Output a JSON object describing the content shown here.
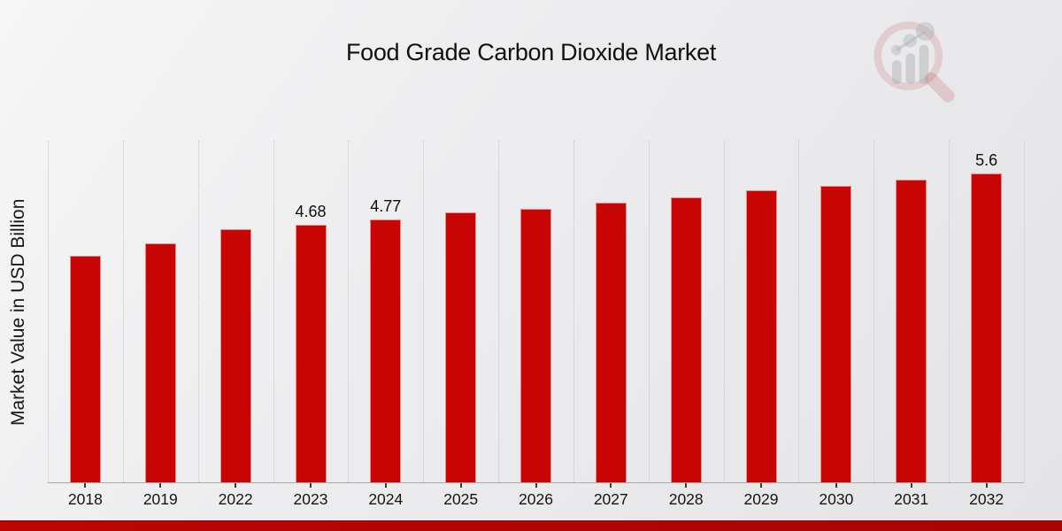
{
  "chart_data": {
    "type": "bar",
    "title": "Food Grade Carbon Dioxide Market",
    "xlabel": "",
    "ylabel": "Market Value in USD Billion",
    "categories": [
      "2018",
      "2019",
      "2022",
      "2023",
      "2024",
      "2025",
      "2026",
      "2027",
      "2028",
      "2029",
      "2030",
      "2031",
      "2032"
    ],
    "values": [
      4.12,
      4.34,
      4.6,
      4.68,
      4.77,
      4.9,
      4.97,
      5.08,
      5.18,
      5.3,
      5.38,
      5.5,
      5.6
    ],
    "data_labels": [
      "",
      "",
      "",
      "4.68",
      "4.77",
      "",
      "",
      "",
      "",
      "",
      "",
      "",
      "5.6"
    ],
    "ylim": [
      0,
      6.2
    ],
    "grid": "vertical-dotted",
    "legend": "none",
    "bar_color": "#c70505",
    "gridline_color": "#c6c6c8",
    "axis_line_color": "#a9a9a9",
    "label_color": "#111111"
  },
  "footer": {
    "strip_color_left": "#bd0505",
    "strip_color_right": "#a90303"
  },
  "watermark": {
    "name": "market-research-chart-logo",
    "ring_color": "rgba(186,76,86,0.22)",
    "bar_color": "rgba(148,150,156,0.38)"
  }
}
